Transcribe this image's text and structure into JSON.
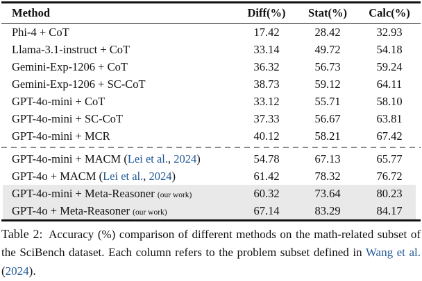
{
  "colors": {
    "citation": "#235a96",
    "highlight": "#e9e9e9",
    "dash": "#8a8a8a",
    "rule": "#111111",
    "text": "#111111"
  },
  "table": {
    "columns": [
      "Method",
      "Diff(%)",
      "Stat(%)",
      "Calc(%)"
    ],
    "groups": [
      {
        "rows": [
          {
            "method": [
              {
                "text": "Phi-4 + CoT",
                "style": "normal"
              }
            ],
            "values": [
              "17.42",
              "28.42",
              "32.93"
            ],
            "highlight": false
          },
          {
            "method": [
              {
                "text": "Llama-3.1-instruct + CoT",
                "style": "normal"
              }
            ],
            "values": [
              "33.14",
              "49.72",
              "54.18"
            ],
            "highlight": false
          },
          {
            "method": [
              {
                "text": "Gemini-Exp-1206 + CoT",
                "style": "normal"
              }
            ],
            "values": [
              "36.32",
              "56.73",
              "59.24"
            ],
            "highlight": false
          },
          {
            "method": [
              {
                "text": "Gemini-Exp-1206 + SC-CoT",
                "style": "normal"
              }
            ],
            "values": [
              "38.73",
              "59.12",
              "64.11"
            ],
            "highlight": false
          },
          {
            "method": [
              {
                "text": "GPT-4o-mini + CoT",
                "style": "normal"
              }
            ],
            "values": [
              "33.12",
              "55.71",
              "58.10"
            ],
            "highlight": false
          },
          {
            "method": [
              {
                "text": "GPT-4o-mini + SC-CoT",
                "style": "normal"
              }
            ],
            "values": [
              "37.33",
              "56.67",
              "63.81"
            ],
            "highlight": false
          },
          {
            "method": [
              {
                "text": "GPT-4o-mini + MCR",
                "style": "normal"
              }
            ],
            "values": [
              "40.12",
              "58.21",
              "67.42"
            ],
            "highlight": false
          }
        ]
      },
      {
        "rows": [
          {
            "method": [
              {
                "text": "GPT-4o-mini + MACM (",
                "style": "normal"
              },
              {
                "text": "Lei et al.",
                "style": "cite"
              },
              {
                "text": ", ",
                "style": "normal"
              },
              {
                "text": "2024",
                "style": "cite"
              },
              {
                "text": ")",
                "style": "normal"
              }
            ],
            "values": [
              "54.78",
              "67.13",
              "65.77"
            ],
            "highlight": false
          },
          {
            "method": [
              {
                "text": "GPT-4o + MACM (",
                "style": "normal"
              },
              {
                "text": "Lei et al.",
                "style": "cite"
              },
              {
                "text": ", ",
                "style": "normal"
              },
              {
                "text": "2024",
                "style": "cite"
              },
              {
                "text": ")",
                "style": "normal"
              }
            ],
            "values": [
              "61.42",
              "78.32",
              "76.72"
            ],
            "highlight": false
          },
          {
            "method": [
              {
                "text": "GPT-4o-mini + Meta-Reasoner ",
                "style": "normal"
              },
              {
                "text": "(our work)",
                "style": "small"
              }
            ],
            "values": [
              "60.32",
              "73.64",
              "80.23"
            ],
            "highlight": true
          },
          {
            "method": [
              {
                "text": "GPT-4o + Meta-Reasoner ",
                "style": "normal"
              },
              {
                "text": "(our work)",
                "style": "small"
              }
            ],
            "values": [
              "67.14",
              "83.29",
              "84.17"
            ],
            "highlight": true
          }
        ]
      }
    ]
  },
  "caption": {
    "segments": [
      {
        "text": "Table 2:",
        "style": "label"
      },
      {
        "text": " Accuracy (%) comparison of different methods on the math-related subset of the SciBench dataset. Each column refers to the problem subset defined in ",
        "style": "normal"
      },
      {
        "text": "Wang et al.",
        "style": "cite"
      },
      {
        "text": " (",
        "style": "normal"
      },
      {
        "text": "2024",
        "style": "cite"
      },
      {
        "text": ").",
        "style": "normal"
      }
    ]
  }
}
